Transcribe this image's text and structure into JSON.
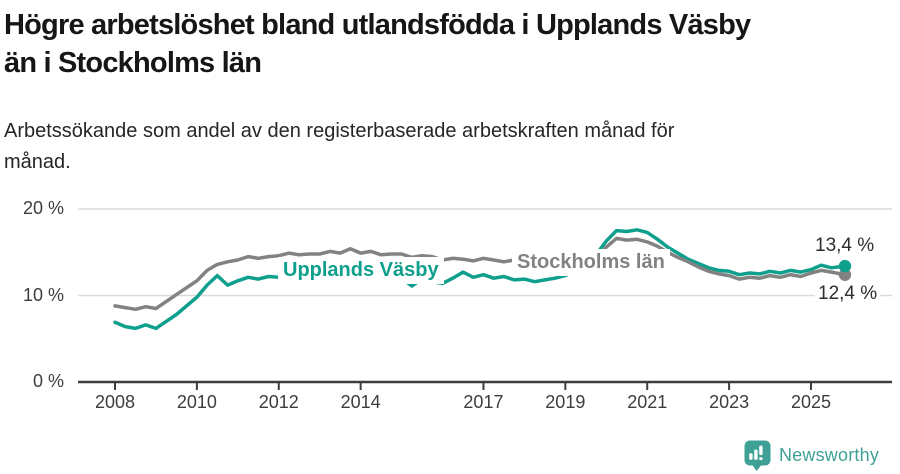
{
  "header": {
    "title_lines": [
      "Högre arbetslöshet bland utlandsfödda i Upplands Väsby",
      "än i Stockholms län"
    ],
    "subtitle_lines": [
      "Arbetssökande som andel av den registerbaserade arbetskraften månad för",
      "månad."
    ]
  },
  "chart_data": {
    "type": "line",
    "title": "Högre arbetslöshet bland utlandsfödda i Upplands Väsby än i Stockholms län",
    "subtitle": "Arbetssökande som andel av den registerbaserade arbetskraften månad för månad.",
    "xlabel": "",
    "ylabel": "",
    "y_unit": "%",
    "xlim": [
      2007.1,
      2026.2
    ],
    "ylim": [
      0,
      21.5
    ],
    "grid": "horizontal",
    "grid_color": "#dbdbdb",
    "axis_color": "#3d3d3d",
    "x": [
      2008,
      2008.25,
      2008.5,
      2008.75,
      2009,
      2009.25,
      2009.5,
      2009.75,
      2010,
      2010.25,
      2010.5,
      2010.75,
      2011,
      2011.25,
      2011.5,
      2011.75,
      2012,
      2012.25,
      2012.5,
      2012.75,
      2013,
      2013.25,
      2013.5,
      2013.75,
      2014,
      2014.25,
      2014.5,
      2014.75,
      2015,
      2015.25,
      2015.5,
      2015.75,
      2016,
      2016.25,
      2016.5,
      2016.75,
      2017,
      2017.25,
      2017.5,
      2017.75,
      2018,
      2018.25,
      2018.5,
      2018.75,
      2019,
      2019.25,
      2019.5,
      2019.75,
      2020,
      2020.25,
      2020.5,
      2020.75,
      2021,
      2021.25,
      2021.5,
      2021.75,
      2022,
      2022.25,
      2022.5,
      2022.75,
      2023,
      2023.25,
      2023.5,
      2023.75,
      2024,
      2024.25,
      2024.5,
      2024.75,
      2025,
      2025.25,
      2025.5,
      2025.83
    ],
    "series": [
      {
        "name": "Upplands Väsby",
        "color": "#0f9f8d",
        "values": [
          6.9,
          6.4,
          6.2,
          6.6,
          6.2,
          7.0,
          7.8,
          8.8,
          9.8,
          11.2,
          12.3,
          11.2,
          11.7,
          12.1,
          11.9,
          12.2,
          12.1,
          12.4,
          12.2,
          12.5,
          12.3,
          12.6,
          12.4,
          12.2,
          12.4,
          12.2,
          12.0,
          12.2,
          12.0,
          11.1,
          11.9,
          11.6,
          11.4,
          12.0,
          12.7,
          12.1,
          12.4,
          12.0,
          12.2,
          11.8,
          11.9,
          11.6,
          11.8,
          12.0,
          12.3,
          12.8,
          13.5,
          14.7,
          16.3,
          17.5,
          17.4,
          17.6,
          17.3,
          16.5,
          15.6,
          14.9,
          14.2,
          13.7,
          13.2,
          12.9,
          12.8,
          12.4,
          12.6,
          12.5,
          12.8,
          12.6,
          12.9,
          12.7,
          13.0,
          13.5,
          13.2,
          13.4
        ]
      },
      {
        "name": "Stockholms län",
        "color": "#828282",
        "values": [
          8.8,
          8.6,
          8.4,
          8.7,
          8.5,
          9.3,
          10.1,
          10.9,
          11.7,
          12.9,
          13.6,
          13.9,
          14.1,
          14.5,
          14.3,
          14.5,
          14.6,
          14.9,
          14.7,
          14.8,
          14.8,
          15.1,
          14.9,
          15.4,
          14.9,
          15.1,
          14.7,
          14.8,
          14.8,
          14.4,
          14.6,
          14.5,
          14.1,
          14.3,
          14.2,
          14.0,
          14.3,
          14.1,
          13.9,
          14.1,
          13.9,
          13.7,
          13.8,
          13.6,
          13.7,
          13.5,
          13.8,
          14.2,
          15.6,
          16.6,
          16.4,
          16.5,
          16.2,
          15.7,
          15.0,
          14.4,
          13.9,
          13.3,
          12.8,
          12.5,
          12.3,
          11.9,
          12.1,
          12.0,
          12.3,
          12.1,
          12.4,
          12.2,
          12.6,
          12.9,
          12.7,
          12.4
        ]
      }
    ],
    "end_labels": [
      {
        "series": "Upplands Väsby",
        "text": "13,4 %",
        "value": 13.4
      },
      {
        "series": "Stockholms län",
        "text": "12,4 %",
        "value": 12.4
      }
    ],
    "x_ticks": [
      {
        "value": 2008,
        "label": "2008"
      },
      {
        "value": 2010,
        "label": "2010"
      },
      {
        "value": 2012,
        "label": "2012"
      },
      {
        "value": 2014,
        "label": "2014"
      },
      {
        "value": 2017,
        "label": "2017"
      },
      {
        "value": 2019,
        "label": "2019"
      },
      {
        "value": 2021,
        "label": "2021"
      },
      {
        "value": 2023,
        "label": "2023"
      },
      {
        "value": 2025,
        "label": "2025"
      }
    ],
    "y_ticks": [
      {
        "value": 20,
        "label": "20 %"
      },
      {
        "value": 10,
        "label": "10 %"
      },
      {
        "value": 0,
        "label": "0 %"
      }
    ],
    "legend_position": "inline-on-lines"
  },
  "footer": {
    "brand": "Newsworthy",
    "brand_color": "#3fa096",
    "logo_icon": "bar-chart-speech-bubble-icon"
  }
}
